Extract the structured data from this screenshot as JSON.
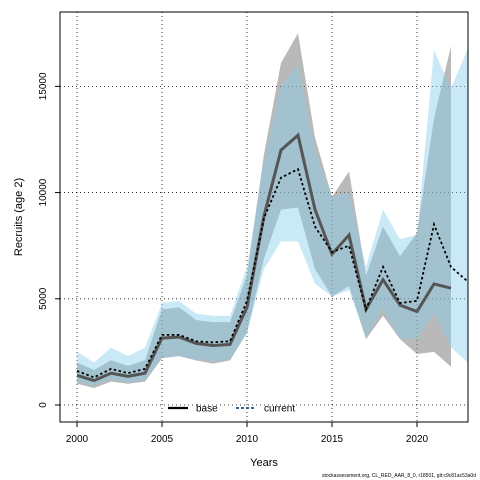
{
  "chart_data": {
    "type": "line",
    "xlabel": "Years",
    "ylabel": "Recruits (age 2)",
    "xlim": [
      1999,
      2023
    ],
    "ylim": [
      -800,
      18500
    ],
    "xticks": [
      2000,
      2005,
      2010,
      2015,
      2020
    ],
    "yticks": [
      0,
      5000,
      10000,
      15000
    ],
    "grid": true,
    "legend_position": "bottom-center",
    "x": [
      2000,
      2001,
      2002,
      2003,
      2004,
      2005,
      2006,
      2007,
      2008,
      2009,
      2010,
      2011,
      2012,
      2013,
      2014,
      2015,
      2016,
      2017,
      2018,
      2019,
      2020,
      2021,
      2022,
      2023
    ],
    "series": [
      {
        "name": "base",
        "color": "#000000",
        "band_color": "#808080",
        "line_color": "#555555",
        "values": [
          1400,
          1150,
          1500,
          1350,
          1500,
          3150,
          3200,
          2900,
          2800,
          2850,
          4600,
          8900,
          12000,
          12700,
          9200,
          7100,
          8000,
          4500,
          5900,
          4700,
          4400,
          5700,
          5500,
          null
        ],
        "lower": [
          1000,
          800,
          1100,
          1000,
          1100,
          2200,
          2300,
          2100,
          1950,
          2100,
          3400,
          6900,
          9200,
          9300,
          6400,
          5100,
          5600,
          3100,
          4200,
          3100,
          2400,
          2500,
          1800,
          null
        ],
        "upper": [
          2000,
          1650,
          2100,
          1850,
          2100,
          4500,
          4600,
          4000,
          3900,
          3900,
          6100,
          11800,
          16100,
          17500,
          12600,
          9800,
          11000,
          6100,
          8400,
          7000,
          8100,
          13500,
          16900,
          null
        ]
      },
      {
        "name": "current",
        "color": "#1a4f7a",
        "band_color": "#87ceeb",
        "line_color": "#000000",
        "values": [
          1600,
          1300,
          1700,
          1500,
          1700,
          3300,
          3300,
          3000,
          2950,
          3000,
          4900,
          8800,
          10700,
          11100,
          8400,
          7200,
          7500,
          4500,
          6500,
          4800,
          4900,
          8500,
          6500,
          5800
        ],
        "lower": [
          1100,
          900,
          1200,
          1050,
          1200,
          2250,
          2300,
          2150,
          2050,
          2150,
          3400,
          6400,
          7700,
          7700,
          5700,
          5100,
          5400,
          3200,
          4500,
          3100,
          3100,
          4300,
          2700,
          2000
        ],
        "upper": [
          2500,
          2000,
          2700,
          2300,
          2700,
          4800,
          4900,
          4300,
          4200,
          4200,
          6500,
          11500,
          15000,
          16000,
          12000,
          9800,
          10000,
          6500,
          9200,
          7800,
          8000,
          16700,
          14900,
          16800
        ]
      }
    ],
    "credit": "stockassessment.org, CL_RED_AAR_8_0, r18501, git:c9c81ac53a0d"
  }
}
